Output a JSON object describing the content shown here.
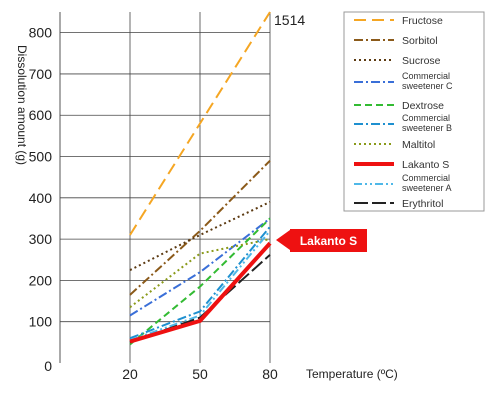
{
  "chart_data": {
    "type": "line",
    "title": "",
    "xlabel": "Temperature (ºC)",
    "ylabel": "Dissolution amount (g)",
    "x": [
      20,
      50,
      80
    ],
    "x_tick_labels": [
      "20",
      "50",
      "80"
    ],
    "ylim": [
      0,
      850
    ],
    "y_tick_labels": [
      "0",
      "100",
      "200",
      "300",
      "400",
      "500",
      "600",
      "700",
      "800"
    ],
    "grid": true,
    "legend_position": "right",
    "annotations": [
      {
        "text": "1514",
        "series": "Fructose"
      },
      {
        "text": "Lakanto S",
        "series": "Lakanto S",
        "style": "red callout"
      }
    ],
    "series": [
      {
        "name": "Fructose",
        "values": [
          310,
          580,
          850
        ],
        "color": "#f5a623",
        "dash": "long"
      },
      {
        "name": "Sorbitol",
        "values": [
          165,
          320,
          490
        ],
        "color": "#8b5a1a",
        "dash": "dashdot"
      },
      {
        "name": "Sucrose",
        "values": [
          225,
          310,
          390
        ],
        "color": "#5c3a12",
        "dash": "dot"
      },
      {
        "name": "Commercial sweetener C",
        "values": [
          115,
          220,
          350
        ],
        "color": "#3a6fd8",
        "dash": "dashdot"
      },
      {
        "name": "Dextrose",
        "values": [
          45,
          185,
          350
        ],
        "color": "#33bb33",
        "dash": "dash"
      },
      {
        "name": "Commercial sweetener B",
        "values": [
          60,
          125,
          330
        ],
        "color": "#1e90d0",
        "dash": "dashdot"
      },
      {
        "name": "Maltitol",
        "values": [
          135,
          265,
          300
        ],
        "color": "#8a9a1a",
        "dash": "dot"
      },
      {
        "name": "Lakanto S",
        "values": [
          52,
          102,
          290
        ],
        "color": "#ee1111",
        "dash": "solid"
      },
      {
        "name": "Commercial sweetener A",
        "values": [
          55,
          115,
          320
        ],
        "color": "#4fb8e8",
        "dash": "dashdotdot"
      },
      {
        "name": "Erythritol",
        "values": [
          50,
          110,
          262
        ],
        "color": "#222222",
        "dash": "longdash"
      }
    ]
  },
  "legend": [
    {
      "lines": [
        "Fructose"
      ]
    },
    {
      "lines": [
        "Sorbitol"
      ]
    },
    {
      "lines": [
        "Sucrose"
      ]
    },
    {
      "lines": [
        "Commercial",
        "sweetener C"
      ]
    },
    {
      "lines": [
        "Dextrose"
      ]
    },
    {
      "lines": [
        "Commercial",
        "sweetener B"
      ]
    },
    {
      "lines": [
        "Maltitol"
      ]
    },
    {
      "lines": [
        "Lakanto S"
      ]
    },
    {
      "lines": [
        "Commercial",
        "sweetener A"
      ]
    },
    {
      "lines": [
        "Erythritol"
      ]
    }
  ]
}
